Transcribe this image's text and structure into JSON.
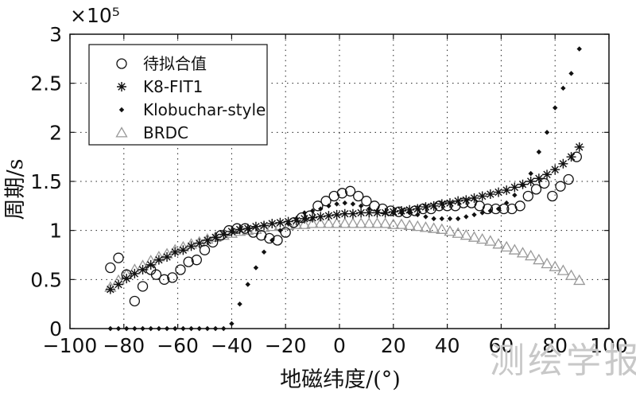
{
  "chart_data": {
    "type": "scatter",
    "title": "",
    "xlabel": "地磁纬度/(°)",
    "ylabel": "周期/s",
    "exponent_label": "×10⁵",
    "xlim": [
      -100,
      100
    ],
    "ylim": [
      0,
      3
    ],
    "xticks": [
      -100,
      -80,
      -60,
      -40,
      -20,
      0,
      20,
      40,
      60,
      80,
      100
    ],
    "yticks": [
      0,
      0.5,
      1,
      1.5,
      2,
      2.5,
      3
    ],
    "xtick_labels": [
      "−100",
      "−80",
      "−60",
      "−40",
      "−20",
      "0",
      "20",
      "40",
      "60",
      "80",
      "100"
    ],
    "ytick_labels": [
      "0",
      "0.5",
      "1",
      "1.5",
      "2",
      "2.5",
      "3"
    ],
    "grid": true,
    "legend_position": "top-left",
    "series": [
      {
        "name": "待拟合值",
        "marker": "circle-open",
        "color": "#111111",
        "x": [
          -85,
          -82,
          -79,
          -76,
          -73,
          -70,
          -68,
          -65,
          -62,
          -59,
          -56,
          -53,
          -50,
          -47,
          -44,
          -41,
          -38,
          -35,
          -32,
          -29,
          -26,
          -23,
          -20,
          -17,
          -14,
          -11,
          -8,
          -5,
          -2,
          1,
          4,
          7,
          10,
          13,
          16,
          19,
          22,
          25,
          28,
          31,
          34,
          37,
          40,
          43,
          46,
          49,
          52,
          55,
          58,
          61,
          64,
          67,
          70,
          73,
          76,
          79,
          82,
          85,
          88
        ],
        "y": [
          0.62,
          0.72,
          0.55,
          0.28,
          0.43,
          0.6,
          0.55,
          0.5,
          0.52,
          0.6,
          0.68,
          0.7,
          0.8,
          0.88,
          0.95,
          1.0,
          1.02,
          1.02,
          0.98,
          0.95,
          0.92,
          0.9,
          0.98,
          1.08,
          1.13,
          1.15,
          1.25,
          1.3,
          1.35,
          1.38,
          1.4,
          1.35,
          1.3,
          1.25,
          1.22,
          1.2,
          1.19,
          1.18,
          1.2,
          1.22,
          1.22,
          1.25,
          1.25,
          1.25,
          1.28,
          1.28,
          1.25,
          1.22,
          1.22,
          1.22,
          1.22,
          1.25,
          1.35,
          1.42,
          1.48,
          1.35,
          1.45,
          1.52,
          1.75
        ]
      },
      {
        "name": "K8-FIT1",
        "marker": "star",
        "color": "#111111",
        "x": [
          -85,
          -82,
          -79,
          -76,
          -73,
          -70,
          -67,
          -64,
          -61,
          -58,
          -55,
          -52,
          -49,
          -46,
          -43,
          -40,
          -37,
          -34,
          -31,
          -28,
          -25,
          -22,
          -19,
          -16,
          -13,
          -10,
          -7,
          -4,
          -1,
          2,
          5,
          8,
          11,
          14,
          17,
          20,
          23,
          26,
          29,
          32,
          35,
          38,
          41,
          44,
          47,
          50,
          53,
          56,
          59,
          62,
          65,
          68,
          71,
          74,
          77,
          80,
          83,
          86,
          89
        ],
        "y": [
          0.4,
          0.45,
          0.51,
          0.56,
          0.6,
          0.65,
          0.7,
          0.73,
          0.78,
          0.8,
          0.84,
          0.87,
          0.9,
          0.93,
          0.96,
          0.99,
          1.01,
          1.02,
          1.04,
          1.05,
          1.07,
          1.08,
          1.09,
          1.1,
          1.12,
          1.13,
          1.14,
          1.15,
          1.16,
          1.17,
          1.17,
          1.18,
          1.18,
          1.18,
          1.18,
          1.19,
          1.2,
          1.21,
          1.22,
          1.24,
          1.25,
          1.27,
          1.28,
          1.3,
          1.31,
          1.33,
          1.35,
          1.37,
          1.39,
          1.41,
          1.44,
          1.47,
          1.5,
          1.53,
          1.57,
          1.62,
          1.68,
          1.75,
          1.85
        ]
      },
      {
        "name": "Klobuchar-style",
        "marker": "diamond-filled",
        "color": "#111111",
        "x": [
          -85,
          -82,
          -79,
          -76,
          -73,
          -70,
          -67,
          -64,
          -61,
          -58,
          -55,
          -52,
          -49,
          -46,
          -43,
          -40,
          -37,
          -34,
          -31,
          -28,
          -25,
          -22,
          -19,
          -16,
          -13,
          -10,
          -7,
          -4,
          -1,
          2,
          5,
          8,
          11,
          14,
          17,
          20,
          23,
          26,
          29,
          32,
          35,
          38,
          41,
          44,
          47,
          50,
          53,
          56,
          59,
          62,
          65,
          68,
          71,
          74,
          77,
          80,
          83,
          86,
          89
        ],
        "y": [
          0,
          0,
          0,
          0,
          0,
          0,
          0,
          0,
          0,
          0,
          0,
          0,
          0,
          0,
          0,
          0.05,
          0.25,
          0.45,
          0.62,
          0.78,
          0.9,
          1.0,
          1.07,
          1.12,
          1.18,
          1.2,
          1.22,
          1.25,
          1.27,
          1.28,
          1.27,
          1.25,
          1.22,
          1.2,
          1.18,
          1.18,
          1.18,
          1.18,
          1.16,
          1.14,
          1.12,
          1.12,
          1.12,
          1.12,
          1.14,
          1.16,
          1.18,
          1.2,
          1.22,
          1.28,
          1.36,
          1.46,
          1.58,
          1.8,
          2.0,
          2.25,
          2.45,
          2.6,
          2.85
        ]
      },
      {
        "name": "BRDC",
        "marker": "triangle-open",
        "color": "#999999",
        "x": [
          -85,
          -82,
          -79,
          -76,
          -73,
          -70,
          -67,
          -64,
          -61,
          -58,
          -55,
          -52,
          -49,
          -46,
          -43,
          -40,
          -37,
          -34,
          -31,
          -28,
          -25,
          -22,
          -19,
          -16,
          -13,
          -10,
          -7,
          -4,
          -1,
          2,
          5,
          8,
          11,
          14,
          17,
          20,
          23,
          26,
          29,
          32,
          35,
          38,
          41,
          44,
          47,
          50,
          53,
          56,
          59,
          62,
          65,
          68,
          71,
          74,
          77,
          80,
          83,
          86,
          89
        ],
        "y": [
          0.42,
          0.49,
          0.55,
          0.6,
          0.64,
          0.69,
          0.73,
          0.76,
          0.8,
          0.83,
          0.86,
          0.88,
          0.91,
          0.93,
          0.95,
          0.97,
          0.99,
          1.0,
          1.01,
          1.03,
          1.04,
          1.05,
          1.05,
          1.06,
          1.06,
          1.07,
          1.07,
          1.07,
          1.07,
          1.07,
          1.07,
          1.07,
          1.07,
          1.07,
          1.07,
          1.06,
          1.06,
          1.05,
          1.04,
          1.03,
          1.02,
          1.01,
          0.99,
          0.97,
          0.95,
          0.93,
          0.91,
          0.89,
          0.86,
          0.83,
          0.8,
          0.77,
          0.74,
          0.7,
          0.66,
          0.63,
          0.59,
          0.54,
          0.49
        ]
      }
    ]
  },
  "watermark": "测绘学报"
}
